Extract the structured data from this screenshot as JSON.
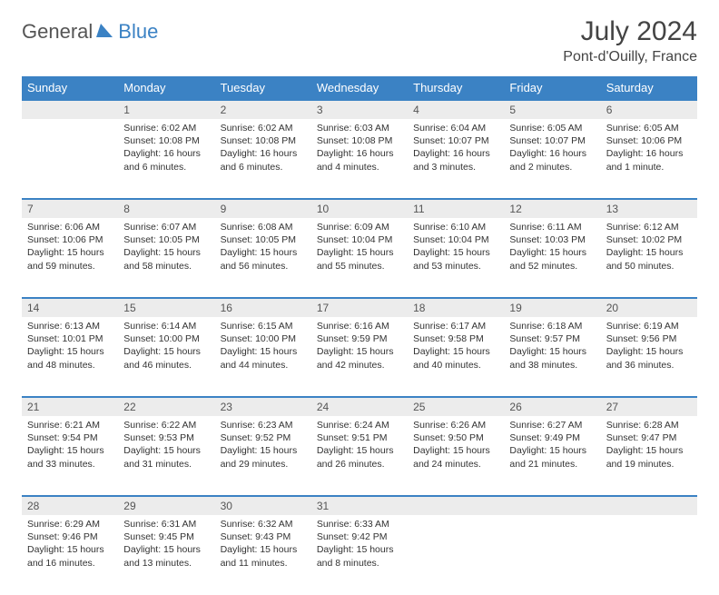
{
  "logo": {
    "text1": "General",
    "text2": "Blue"
  },
  "title": "July 2024",
  "location": "Pont-d'Ouilly, France",
  "header_bg": "#3b82c4",
  "divider_color": "#3b82c4",
  "daynum_bg": "#ececec",
  "text_color": "#333333",
  "days": [
    "Sunday",
    "Monday",
    "Tuesday",
    "Wednesday",
    "Thursday",
    "Friday",
    "Saturday"
  ],
  "weeks": [
    [
      null,
      {
        "n": "1",
        "sr": "6:02 AM",
        "ss": "10:08 PM",
        "dl": "16 hours and 6 minutes."
      },
      {
        "n": "2",
        "sr": "6:02 AM",
        "ss": "10:08 PM",
        "dl": "16 hours and 6 minutes."
      },
      {
        "n": "3",
        "sr": "6:03 AM",
        "ss": "10:08 PM",
        "dl": "16 hours and 4 minutes."
      },
      {
        "n": "4",
        "sr": "6:04 AM",
        "ss": "10:07 PM",
        "dl": "16 hours and 3 minutes."
      },
      {
        "n": "5",
        "sr": "6:05 AM",
        "ss": "10:07 PM",
        "dl": "16 hours and 2 minutes."
      },
      {
        "n": "6",
        "sr": "6:05 AM",
        "ss": "10:06 PM",
        "dl": "16 hours and 1 minute."
      }
    ],
    [
      {
        "n": "7",
        "sr": "6:06 AM",
        "ss": "10:06 PM",
        "dl": "15 hours and 59 minutes."
      },
      {
        "n": "8",
        "sr": "6:07 AM",
        "ss": "10:05 PM",
        "dl": "15 hours and 58 minutes."
      },
      {
        "n": "9",
        "sr": "6:08 AM",
        "ss": "10:05 PM",
        "dl": "15 hours and 56 minutes."
      },
      {
        "n": "10",
        "sr": "6:09 AM",
        "ss": "10:04 PM",
        "dl": "15 hours and 55 minutes."
      },
      {
        "n": "11",
        "sr": "6:10 AM",
        "ss": "10:04 PM",
        "dl": "15 hours and 53 minutes."
      },
      {
        "n": "12",
        "sr": "6:11 AM",
        "ss": "10:03 PM",
        "dl": "15 hours and 52 minutes."
      },
      {
        "n": "13",
        "sr": "6:12 AM",
        "ss": "10:02 PM",
        "dl": "15 hours and 50 minutes."
      }
    ],
    [
      {
        "n": "14",
        "sr": "6:13 AM",
        "ss": "10:01 PM",
        "dl": "15 hours and 48 minutes."
      },
      {
        "n": "15",
        "sr": "6:14 AM",
        "ss": "10:00 PM",
        "dl": "15 hours and 46 minutes."
      },
      {
        "n": "16",
        "sr": "6:15 AM",
        "ss": "10:00 PM",
        "dl": "15 hours and 44 minutes."
      },
      {
        "n": "17",
        "sr": "6:16 AM",
        "ss": "9:59 PM",
        "dl": "15 hours and 42 minutes."
      },
      {
        "n": "18",
        "sr": "6:17 AM",
        "ss": "9:58 PM",
        "dl": "15 hours and 40 minutes."
      },
      {
        "n": "19",
        "sr": "6:18 AM",
        "ss": "9:57 PM",
        "dl": "15 hours and 38 minutes."
      },
      {
        "n": "20",
        "sr": "6:19 AM",
        "ss": "9:56 PM",
        "dl": "15 hours and 36 minutes."
      }
    ],
    [
      {
        "n": "21",
        "sr": "6:21 AM",
        "ss": "9:54 PM",
        "dl": "15 hours and 33 minutes."
      },
      {
        "n": "22",
        "sr": "6:22 AM",
        "ss": "9:53 PM",
        "dl": "15 hours and 31 minutes."
      },
      {
        "n": "23",
        "sr": "6:23 AM",
        "ss": "9:52 PM",
        "dl": "15 hours and 29 minutes."
      },
      {
        "n": "24",
        "sr": "6:24 AM",
        "ss": "9:51 PM",
        "dl": "15 hours and 26 minutes."
      },
      {
        "n": "25",
        "sr": "6:26 AM",
        "ss": "9:50 PM",
        "dl": "15 hours and 24 minutes."
      },
      {
        "n": "26",
        "sr": "6:27 AM",
        "ss": "9:49 PM",
        "dl": "15 hours and 21 minutes."
      },
      {
        "n": "27",
        "sr": "6:28 AM",
        "ss": "9:47 PM",
        "dl": "15 hours and 19 minutes."
      }
    ],
    [
      {
        "n": "28",
        "sr": "6:29 AM",
        "ss": "9:46 PM",
        "dl": "15 hours and 16 minutes."
      },
      {
        "n": "29",
        "sr": "6:31 AM",
        "ss": "9:45 PM",
        "dl": "15 hours and 13 minutes."
      },
      {
        "n": "30",
        "sr": "6:32 AM",
        "ss": "9:43 PM",
        "dl": "15 hours and 11 minutes."
      },
      {
        "n": "31",
        "sr": "6:33 AM",
        "ss": "9:42 PM",
        "dl": "15 hours and 8 minutes."
      },
      null,
      null,
      null
    ]
  ]
}
